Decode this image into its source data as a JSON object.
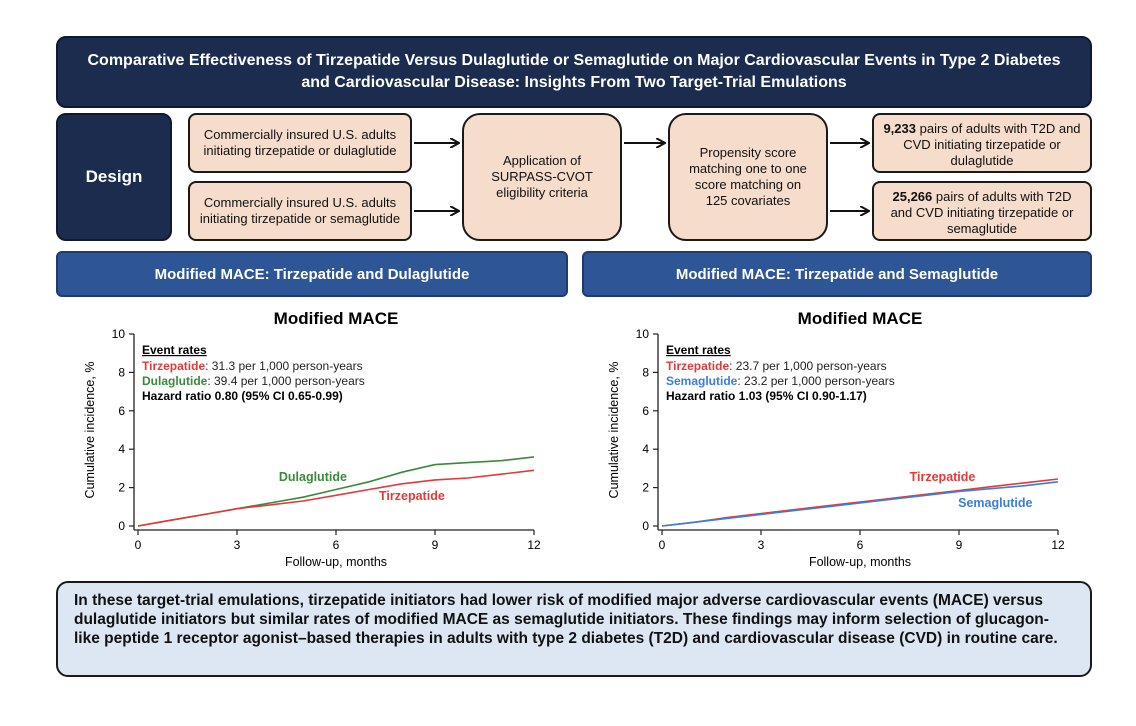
{
  "title": "Comparative Effectiveness of Tirzepatide Versus Dulaglutide or Semaglutide on Major Cardiovascular Events in Type 2 Diabetes and Cardiovascular Disease: Insights From Two Target-Trial Emulations",
  "design": {
    "label": "Design",
    "cohort_dula": "Commercially insured U.S. adults initiating tirzepatide or dulaglutide",
    "cohort_sema": "Commercially insured U.S. adults initiating tirzepatide or semaglutide",
    "eligibility": "Application of SURPASS-CVOT eligibility criteria",
    "matching": "Propensity score matching one to one score matching on 125 covariates",
    "result_dula_count": "9,233",
    "result_dula_text": "pairs of adults with T2D and CVD initiating tirzepatide or dulaglutide",
    "result_sema_count": "25,266",
    "result_sema_text": "pairs of adults with T2D and CVD initiating tirzepatide or semaglutide"
  },
  "sections": {
    "left_header": "Modified MACE: Tirzepatide and Dulaglutide",
    "right_header": "Modified MACE: Tirzepatide and Semaglutide"
  },
  "summary": "In these target-trial emulations, tirzepatide initiators had lower risk of modified major adverse cardiovascular events (MACE) versus dulaglutide initiators but similar rates of modified MACE as semaglutide initiators. These findings may inform selection of glucagon-like peptide 1 receptor agonist–based therapies in adults with type 2 diabetes (T2D) and cardiovascular disease (CVD) in routine care.",
  "colors": {
    "tirzepatide": "#e23a3a",
    "dulaglutide": "#3a8a3a",
    "semaglutide": "#3a7de0"
  },
  "chart_data": [
    {
      "type": "line",
      "title": "Modified MACE",
      "xlabel": "Follow-up, months",
      "ylabel": "Cumulative incidence, %",
      "xlim": [
        0,
        12
      ],
      "ylim": [
        0,
        10
      ],
      "xticks": [
        0,
        3,
        6,
        9,
        12
      ],
      "yticks": [
        0,
        2,
        4,
        6,
        8,
        10
      ],
      "legend_title": "Event rates",
      "legend": [
        {
          "name": "Tirzepatide",
          "text": ": 31.3 per 1,000 person-years",
          "color": "#e23a3a"
        },
        {
          "name": "Dulaglutide",
          "text": ": 39.4 per 1,000 person-years",
          "color": "#3a8a3a"
        }
      ],
      "hazard_ratio": "Hazard ratio  0.80 (95% CI  0.65-0.99)",
      "series": [
        {
          "name": "Dulaglutide",
          "color": "#3a8a3a",
          "x": [
            0,
            1,
            2,
            3,
            4,
            5,
            6,
            7,
            8,
            9,
            10,
            11,
            12
          ],
          "values": [
            0,
            0.3,
            0.6,
            0.9,
            1.2,
            1.5,
            1.9,
            2.3,
            2.8,
            3.2,
            3.3,
            3.4,
            3.6
          ]
        },
        {
          "name": "Tirzepatide",
          "color": "#e23a3a",
          "x": [
            0,
            1,
            2,
            3,
            4,
            5,
            6,
            7,
            8,
            9,
            10,
            11,
            12
          ],
          "values": [
            0,
            0.3,
            0.6,
            0.9,
            1.1,
            1.3,
            1.6,
            1.9,
            2.2,
            2.4,
            2.5,
            2.7,
            2.9
          ]
        }
      ],
      "series_labels": [
        "Dulaglutide",
        "Tirzepatide"
      ]
    },
    {
      "type": "line",
      "title": "Modified MACE",
      "xlabel": "Follow-up, months",
      "ylabel": "Cumulative incidence, %",
      "xlim": [
        0,
        12
      ],
      "ylim": [
        0,
        10
      ],
      "xticks": [
        0,
        3,
        6,
        9,
        12
      ],
      "yticks": [
        0,
        2,
        4,
        6,
        8,
        10
      ],
      "legend_title": "Event rates",
      "legend": [
        {
          "name": "Tirzepatide",
          "text": ": 23.7 per 1,000 person-years",
          "color": "#e23a3a"
        },
        {
          "name": "Semaglutide",
          "text": ": 23.2 per 1,000 person-years",
          "color": "#3a7de0"
        }
      ],
      "hazard_ratio": "Hazard ratio  1.03 (95% CI  0.90-1.17)",
      "series": [
        {
          "name": "Tirzepatide",
          "color": "#e23a3a",
          "x": [
            0,
            1,
            2,
            3,
            4,
            5,
            6,
            7,
            8,
            9,
            10,
            11,
            12
          ],
          "values": [
            0,
            0.2,
            0.45,
            0.65,
            0.85,
            1.05,
            1.25,
            1.45,
            1.65,
            1.85,
            2.05,
            2.25,
            2.45
          ]
        },
        {
          "name": "Semaglutide",
          "color": "#3a7de0",
          "x": [
            0,
            1,
            2,
            3,
            4,
            5,
            6,
            7,
            8,
            9,
            10,
            11,
            12
          ],
          "values": [
            0,
            0.2,
            0.4,
            0.6,
            0.8,
            1.0,
            1.2,
            1.4,
            1.6,
            1.8,
            1.95,
            2.1,
            2.3
          ]
        }
      ],
      "series_labels": [
        "Tirzepatide",
        "Semaglutide"
      ]
    }
  ]
}
